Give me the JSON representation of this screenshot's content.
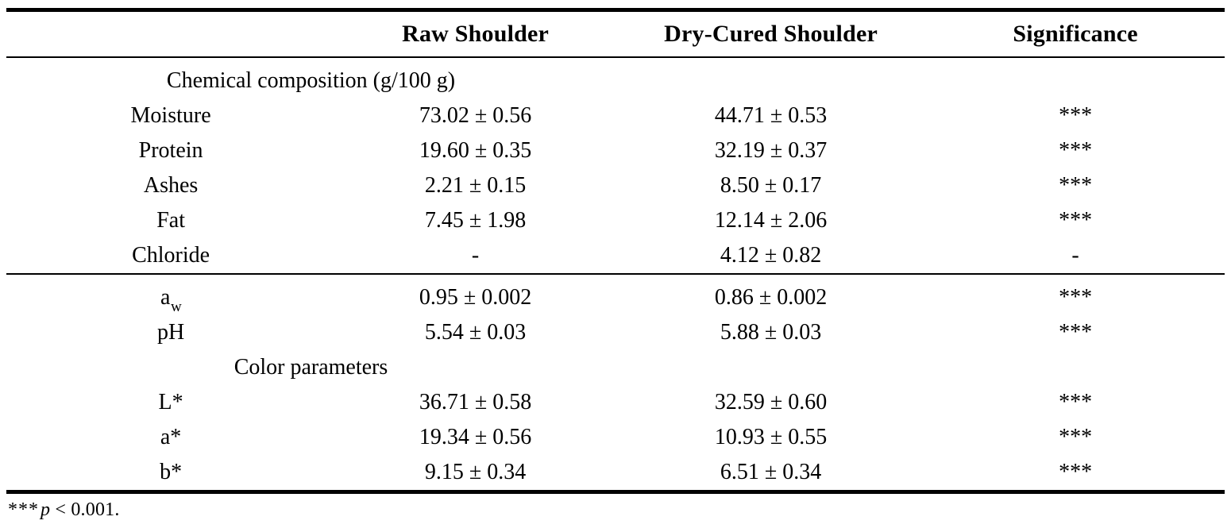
{
  "table": {
    "columns": [
      "",
      "Raw Shoulder",
      "Dry-Cured Shoulder",
      "Significance"
    ],
    "rows": [
      {
        "kind": "section",
        "label": "Chemical composition (g/100 g)"
      },
      {
        "kind": "data",
        "param": "Moisture",
        "raw": "73.02 ± 0.56",
        "dry": "44.71 ± 0.53",
        "sig": "***"
      },
      {
        "kind": "data",
        "param": "Protein",
        "raw": "19.60 ± 0.35",
        "dry": "32.19 ± 0.37",
        "sig": "***"
      },
      {
        "kind": "data",
        "param": "Ashes",
        "raw": "2.21 ± 0.15",
        "dry": "8.50 ± 0.17",
        "sig": "***"
      },
      {
        "kind": "data",
        "param": "Fat",
        "raw": "7.45 ± 1.98",
        "dry": "12.14 ± 2.06",
        "sig": "***"
      },
      {
        "kind": "data",
        "param": "Chloride",
        "raw": "-",
        "dry": "4.12 ± 0.82",
        "sig": "-"
      },
      {
        "kind": "data",
        "param_base": "a",
        "param_sub": "w",
        "raw": "0.95 ± 0.002",
        "dry": "0.86 ± 0.002",
        "sig": "***"
      },
      {
        "kind": "data",
        "param": "pH",
        "raw": "5.54 ± 0.03",
        "dry": "5.88 ± 0.03",
        "sig": "***"
      },
      {
        "kind": "section",
        "label": "Color parameters"
      },
      {
        "kind": "data",
        "param": "L*",
        "raw": "36.71 ± 0.58",
        "dry": "32.59 ± 0.60",
        "sig": "***"
      },
      {
        "kind": "data",
        "param": "a*",
        "raw": "19.34 ± 0.56",
        "dry": "10.93 ± 0.55",
        "sig": "***"
      },
      {
        "kind": "data",
        "param": "b*",
        "raw": "9.15 ± 0.34",
        "dry": "6.51 ± 0.34",
        "sig": "***"
      }
    ],
    "footnote": {
      "marker": "***",
      "p_symbol": "p",
      "condition": "< 0.001."
    }
  }
}
